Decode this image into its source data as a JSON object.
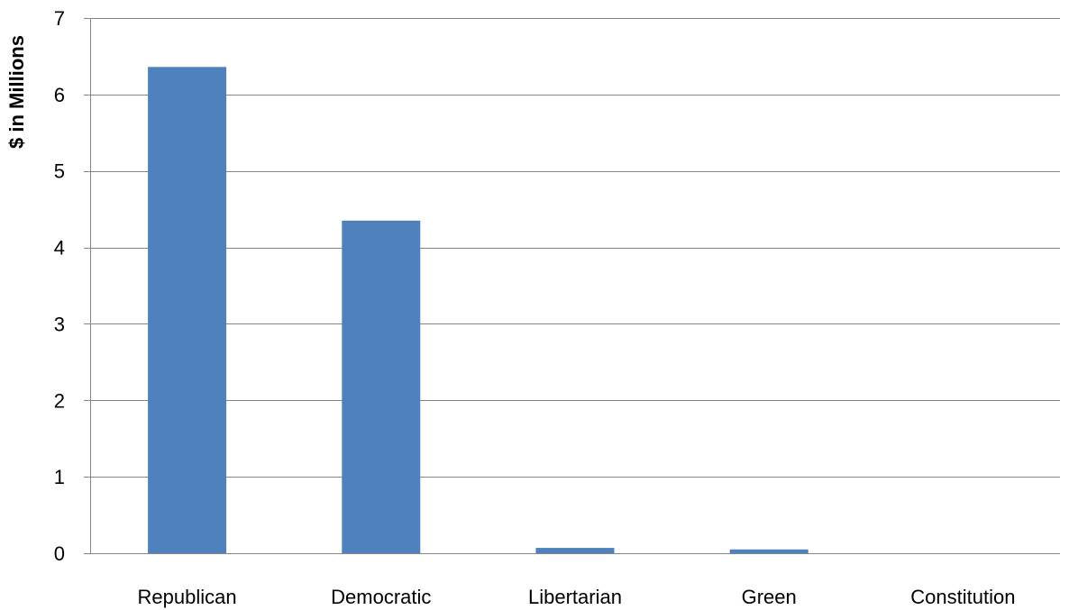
{
  "chart_data": {
    "type": "bar",
    "categories": [
      "Republican",
      "Democratic",
      "Libertarian",
      "Green",
      "Constitution"
    ],
    "values": [
      6.36,
      4.35,
      0.07,
      0.05,
      0
    ],
    "ylabel": "$ in Millions",
    "ylim": [
      0,
      7
    ],
    "yticks": [
      "0",
      "1",
      "2",
      "3",
      "4",
      "5",
      "6",
      "7"
    ],
    "grid": true,
    "legend": "none",
    "colors": {
      "bar": "#4f81bd",
      "grid": "#868686",
      "axis": "#868686"
    }
  }
}
